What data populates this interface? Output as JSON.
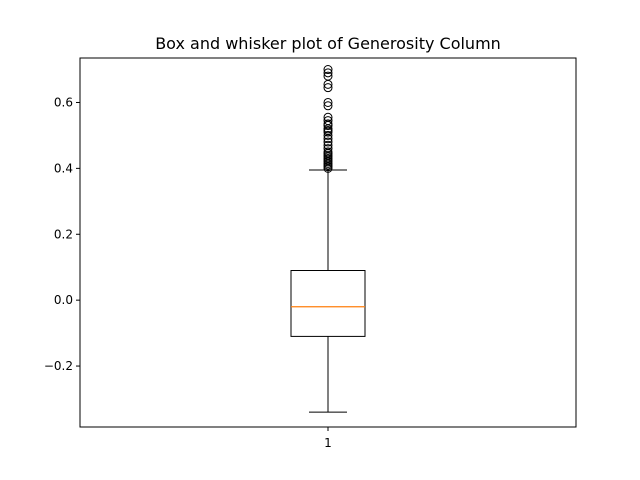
{
  "chart_data": {
    "type": "box",
    "title": "Box and whisker plot of Generosity Column",
    "xlabel": "",
    "ylabel": "",
    "categories": [
      "1"
    ],
    "ylim": [
      -0.385,
      0.735
    ],
    "yticks": [
      -0.2,
      0.0,
      0.2,
      0.4,
      0.6
    ],
    "ytick_labels": [
      "−0.2",
      "0.0",
      "0.2",
      "0.4",
      "0.6"
    ],
    "grid": false,
    "legend": "none",
    "boxes": [
      {
        "category": "1",
        "whisker_low": -0.34,
        "q1": -0.11,
        "median": -0.02,
        "q3": 0.09,
        "whisker_high": 0.395,
        "outliers": [
          0.4,
          0.405,
          0.41,
          0.415,
          0.42,
          0.425,
          0.43,
          0.435,
          0.44,
          0.445,
          0.45,
          0.46,
          0.47,
          0.48,
          0.49,
          0.5,
          0.51,
          0.515,
          0.52,
          0.53,
          0.535,
          0.545,
          0.555,
          0.59,
          0.6,
          0.645,
          0.655,
          0.68,
          0.69,
          0.7
        ]
      }
    ],
    "colors": {
      "box": "#000000",
      "median": "#ff7f0e",
      "axes": "#000000"
    }
  }
}
